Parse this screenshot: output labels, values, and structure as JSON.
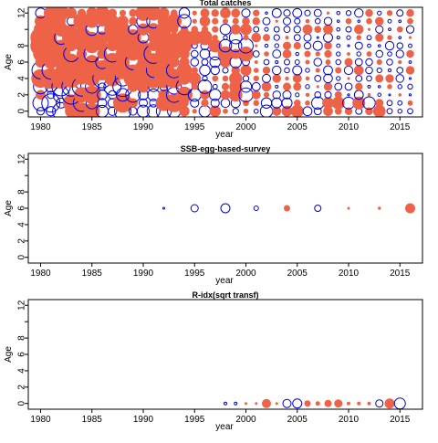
{
  "colors": {
    "positive": "#ee6348",
    "negative": "#0000d8",
    "axis": "#000000"
  },
  "chart_data": [
    {
      "type": "scatter",
      "title": "Total catches",
      "xlabel": "year",
      "ylabel": "Age",
      "xlim": [
        1978.8,
        2017.2
      ],
      "ylim": [
        -0.7,
        12.7
      ],
      "xticks": [
        1980,
        1985,
        1990,
        1995,
        2000,
        2005,
        2010,
        2015
      ],
      "yticks": [
        0,
        2,
        4,
        6,
        8,
        12
      ],
      "encoding": "bubble area proportional to residual magnitude; filled = positive, open = negative",
      "generator": {
        "years": [
          1980,
          2016
        ],
        "ages": [
          0,
          12
        ]
      }
    },
    {
      "type": "scatter",
      "title": "SSB-egg-based-survey",
      "xlabel": "year",
      "ylabel": "Age",
      "xlim": [
        1978.8,
        2017.2
      ],
      "ylim": [
        -0.7,
        12.7
      ],
      "xticks": [
        1980,
        1985,
        1990,
        1995,
        2000,
        2005,
        2010,
        2015
      ],
      "yticks": [
        0,
        2,
        4,
        6,
        8,
        12
      ],
      "points": [
        {
          "year": 1992,
          "age": 6,
          "r": 1,
          "sign": "neg"
        },
        {
          "year": 1995,
          "age": 6,
          "r": 4,
          "sign": "neg"
        },
        {
          "year": 1998,
          "age": 6,
          "r": 5,
          "sign": "neg"
        },
        {
          "year": 2001,
          "age": 6,
          "r": 2.5,
          "sign": "neg"
        },
        {
          "year": 2004,
          "age": 6,
          "r": 3,
          "sign": "pos"
        },
        {
          "year": 2007,
          "age": 6,
          "r": 3.5,
          "sign": "neg"
        },
        {
          "year": 2010,
          "age": 6,
          "r": 1,
          "sign": "pos"
        },
        {
          "year": 2013,
          "age": 6,
          "r": 1.2,
          "sign": "pos"
        },
        {
          "year": 2016,
          "age": 6,
          "r": 5,
          "sign": "pos"
        }
      ]
    },
    {
      "type": "scatter",
      "title": "R-idx(sqrt transf)",
      "xlabel": "year",
      "ylabel": "Age",
      "xlim": [
        1978.8,
        2017.2
      ],
      "ylim": [
        -0.7,
        12.7
      ],
      "xticks": [
        1980,
        1985,
        1990,
        1995,
        2000,
        2005,
        2010,
        2015
      ],
      "yticks": [
        0,
        2,
        4,
        6,
        8,
        12
      ],
      "points": [
        {
          "year": 1998,
          "age": 0,
          "r": 1.5,
          "sign": "neg"
        },
        {
          "year": 1999,
          "age": 0,
          "r": 1.5,
          "sign": "neg"
        },
        {
          "year": 2000,
          "age": 0,
          "r": 1,
          "sign": "pos"
        },
        {
          "year": 2001,
          "age": 0,
          "r": 1,
          "sign": "pos"
        },
        {
          "year": 2002,
          "age": 0,
          "r": 4.5,
          "sign": "pos"
        },
        {
          "year": 2003,
          "age": 0,
          "r": 1,
          "sign": "pos"
        },
        {
          "year": 2004,
          "age": 0,
          "r": 4.5,
          "sign": "neg"
        },
        {
          "year": 2005,
          "age": 0,
          "r": 5,
          "sign": "neg"
        },
        {
          "year": 2006,
          "age": 0,
          "r": 3,
          "sign": "pos"
        },
        {
          "year": 2007,
          "age": 0,
          "r": 2,
          "sign": "pos"
        },
        {
          "year": 2008,
          "age": 0,
          "r": 3.5,
          "sign": "pos"
        },
        {
          "year": 2009,
          "age": 0,
          "r": 4,
          "sign": "pos"
        },
        {
          "year": 2010,
          "age": 0,
          "r": 1.5,
          "sign": "pos"
        },
        {
          "year": 2011,
          "age": 0,
          "r": 1.5,
          "sign": "pos"
        },
        {
          "year": 2012,
          "age": 0,
          "r": 1.5,
          "sign": "pos"
        },
        {
          "year": 2013,
          "age": 0,
          "r": 4,
          "sign": "neg"
        },
        {
          "year": 2014,
          "age": 0,
          "r": 5,
          "sign": "pos"
        },
        {
          "year": 2015,
          "age": 0,
          "r": 6,
          "sign": "neg"
        }
      ]
    }
  ]
}
